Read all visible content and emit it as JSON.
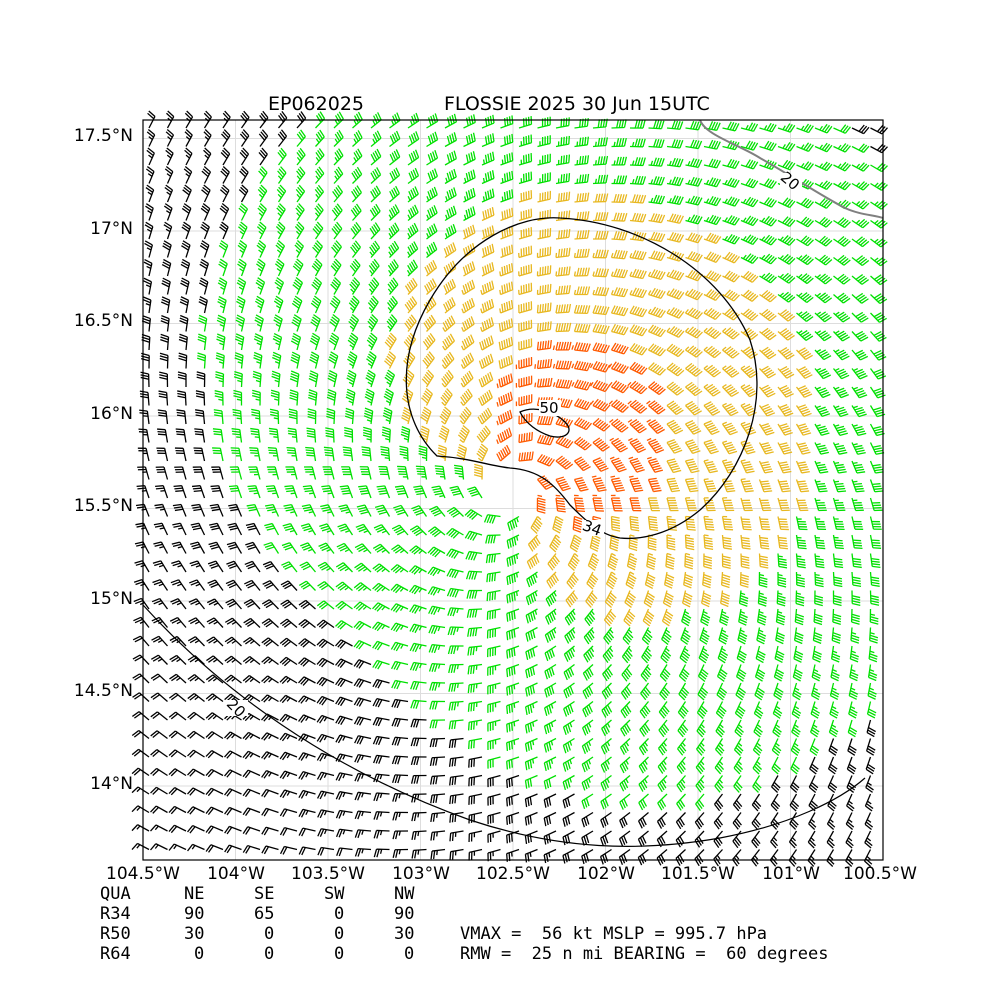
{
  "title": {
    "storm_id": "EP062025",
    "storm_info": "FLOSSIE 2025 30 Jun 15UTC"
  },
  "map": {
    "lat_ticks": [
      "17.5°N",
      "17°N",
      "16.5°N",
      "16°N",
      "15.5°N",
      "15°N",
      "14.5°N",
      "14°N"
    ],
    "lon_ticks": [
      "104.5°W",
      "104°W",
      "103.5°W",
      "103°W",
      "102.5°W",
      "102°W",
      "101.5°W",
      "101°W",
      "100.5°W"
    ],
    "lon_range": [
      -104.5,
      -100.5
    ],
    "lat_range": [
      13.6,
      17.6
    ],
    "center": {
      "lon": -102.5,
      "lat": 15.6
    },
    "contour_labels": {
      "c20_upper": "20",
      "c20_lower": "20",
      "c34": "34",
      "c50": "50"
    },
    "colors": {
      "below_34": "#000000",
      "kt_34_50": "#00e000",
      "kt_50_64": "#e8b820",
      "kt_64_plus": "#ff5a00",
      "contour": "#000000",
      "coast": "#808080",
      "grid": "#dddddd"
    }
  },
  "wind_radii_table": {
    "header": [
      "QUA",
      "NE",
      "SE",
      "SW",
      "NW"
    ],
    "rows": [
      {
        "label": "R34",
        "values": [
          "90",
          "65",
          "0",
          "90"
        ],
        "sw": "0"
      },
      {
        "label": "R50",
        "values": [
          "30",
          "0",
          "0",
          "30"
        ],
        "sw": "0"
      },
      {
        "label": "R64",
        "values": [
          "0",
          "0",
          "0",
          "0"
        ],
        "sw": "0"
      }
    ]
  },
  "summary": {
    "line1": "VMAX =  56 kt MSLP = 995.7 hPa",
    "line2": "RMW =  25 n mi BEARING =  60 degrees"
  }
}
